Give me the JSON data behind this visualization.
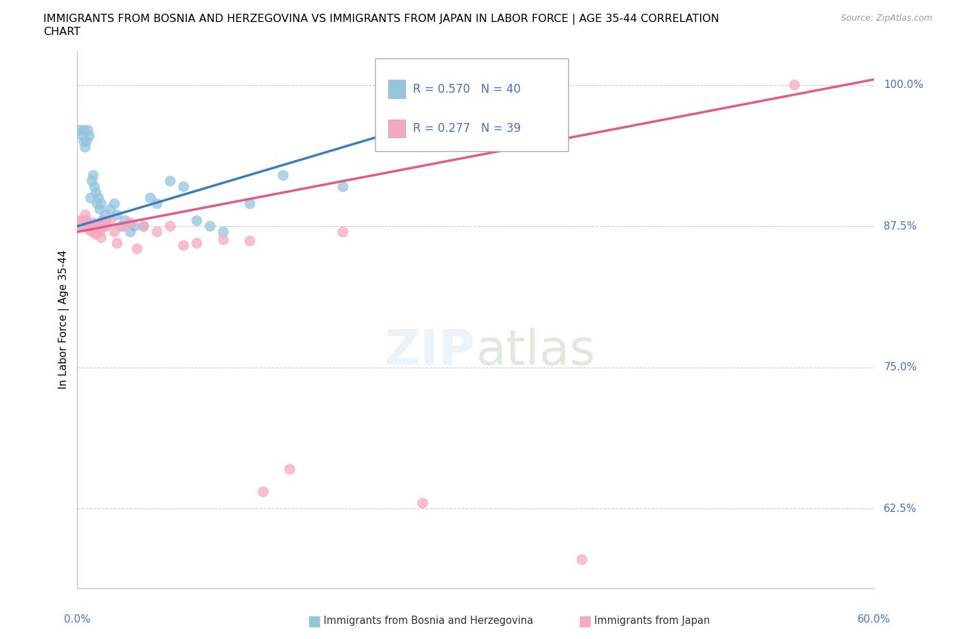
{
  "title_line1": "IMMIGRANTS FROM BOSNIA AND HERZEGOVINA VS IMMIGRANTS FROM JAPAN IN LABOR FORCE | AGE 35-44 CORRELATION",
  "title_line2": "CHART",
  "source": "Source: ZipAtlas.com",
  "ylabel_label": "In Labor Force | Age 35-44",
  "legend_bosnia": "R = 0.570   N = 40",
  "legend_japan": "R = 0.277   N = 39",
  "watermark_zip": "ZIP",
  "watermark_atlas": "atlas",
  "color_bosnia": "#92c5de",
  "color_japan": "#f4a9c0",
  "color_trendline_bosnia": "#3a7ebf",
  "color_trendline_japan": "#e05a8a",
  "color_axis_labels": "#4472c4",
  "xlim": [
    0.0,
    0.6
  ],
  "ylim": [
    0.555,
    1.03
  ],
  "yticks": [
    0.625,
    0.75,
    0.875,
    1.0
  ],
  "ytick_labels": [
    "62.5%",
    "75.0%",
    "87.5%",
    "100.0%"
  ],
  "bosnia_x": [
    0.002,
    0.004,
    0.005,
    0.005,
    0.006,
    0.007,
    0.008,
    0.009,
    0.01,
    0.011,
    0.012,
    0.013,
    0.014,
    0.015,
    0.016,
    0.017,
    0.018,
    0.019,
    0.02,
    0.021,
    0.022,
    0.025,
    0.028,
    0.03,
    0.033,
    0.036,
    0.04,
    0.043,
    0.05,
    0.055,
    0.06,
    0.07,
    0.08,
    0.09,
    0.1,
    0.11,
    0.13,
    0.155,
    0.2,
    0.3
  ],
  "bosnia_y": [
    0.96,
    0.955,
    0.96,
    0.95,
    0.945,
    0.95,
    0.96,
    0.955,
    0.9,
    0.915,
    0.92,
    0.91,
    0.905,
    0.895,
    0.9,
    0.89,
    0.895,
    0.88,
    0.875,
    0.885,
    0.88,
    0.89,
    0.895,
    0.885,
    0.875,
    0.88,
    0.87,
    0.875,
    0.875,
    0.9,
    0.895,
    0.915,
    0.91,
    0.88,
    0.875,
    0.87,
    0.895,
    0.92,
    0.91,
    0.97
  ],
  "japan_x": [
    0.001,
    0.002,
    0.003,
    0.004,
    0.005,
    0.006,
    0.007,
    0.008,
    0.009,
    0.01,
    0.011,
    0.012,
    0.013,
    0.014,
    0.015,
    0.016,
    0.017,
    0.018,
    0.02,
    0.022,
    0.025,
    0.028,
    0.03,
    0.035,
    0.04,
    0.045,
    0.05,
    0.06,
    0.07,
    0.08,
    0.09,
    0.11,
    0.13,
    0.14,
    0.16,
    0.2,
    0.26,
    0.38,
    0.54
  ],
  "japan_y": [
    0.875,
    0.88,
    0.88,
    0.875,
    0.875,
    0.885,
    0.88,
    0.878,
    0.872,
    0.875,
    0.87,
    0.878,
    0.875,
    0.868,
    0.872,
    0.875,
    0.87,
    0.865,
    0.88,
    0.875,
    0.88,
    0.87,
    0.86,
    0.875,
    0.878,
    0.855,
    0.875,
    0.87,
    0.875,
    0.858,
    0.86,
    0.863,
    0.862,
    0.64,
    0.66,
    0.87,
    0.63,
    0.58,
    1.0
  ],
  "bosnia_trendline": [
    0.0,
    0.3,
    0.875,
    0.98
  ],
  "japan_trendline": [
    0.0,
    0.6,
    0.87,
    1.005
  ]
}
